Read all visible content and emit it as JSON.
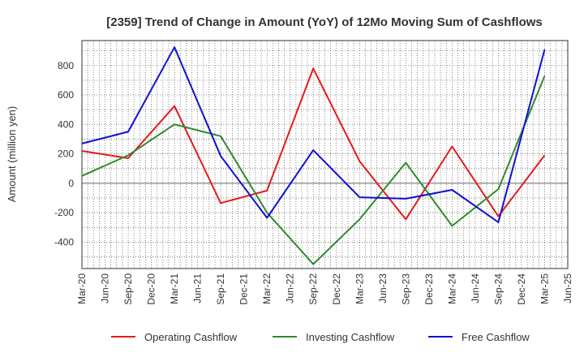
{
  "chart_data": {
    "type": "line",
    "title": "[2359]  Trend of Change in Amount (YoY) of 12Mo Moving Sum of Cashflows",
    "xlabel": "",
    "ylabel": "Amount (million yen)",
    "ylim": [
      -580,
      970
    ],
    "yticks": [
      800,
      600,
      400,
      200,
      0,
      -200,
      -400
    ],
    "grid": true,
    "legend_position": "bottom",
    "categories": [
      "Mar-20",
      "Jun-20",
      "Sep-20",
      "Dec-20",
      "Mar-21",
      "Jun-21",
      "Sep-21",
      "Dec-21",
      "Mar-22",
      "Jun-22",
      "Sep-22",
      "Dec-22",
      "Mar-23",
      "Jun-23",
      "Sep-23",
      "Dec-23",
      "Mar-24",
      "Jun-24",
      "Sep-24",
      "Dec-24",
      "Mar-25",
      "Jun-25"
    ],
    "series": [
      {
        "name": "Operating Cashflow",
        "color": "#e41a1c",
        "points": [
          [
            "Mar-20",
            220
          ],
          [
            "Sep-20",
            170
          ],
          [
            "Mar-21",
            525
          ],
          [
            "Sep-21",
            -135
          ],
          [
            "Mar-22",
            -50
          ],
          [
            "Sep-22",
            780
          ],
          [
            "Mar-23",
            150
          ],
          [
            "Sep-23",
            -245
          ],
          [
            "Mar-24",
            250
          ],
          [
            "Sep-24",
            -225
          ],
          [
            "Mar-25",
            190
          ]
        ]
      },
      {
        "name": "Investing Cashflow",
        "color": "#2e8b2e",
        "points": [
          [
            "Mar-20",
            50
          ],
          [
            "Sep-20",
            190
          ],
          [
            "Mar-21",
            400
          ],
          [
            "Sep-21",
            320
          ],
          [
            "Mar-22",
            -200
          ],
          [
            "Sep-22",
            -550
          ],
          [
            "Mar-23",
            -245
          ],
          [
            "Sep-23",
            140
          ],
          [
            "Mar-24",
            -290
          ],
          [
            "Sep-24",
            -40
          ],
          [
            "Mar-25",
            730
          ]
        ]
      },
      {
        "name": "Free Cashflow",
        "color": "#1010d0",
        "points": [
          [
            "Mar-20",
            270
          ],
          [
            "Sep-20",
            350
          ],
          [
            "Mar-21",
            925
          ],
          [
            "Sep-21",
            185
          ],
          [
            "Mar-22",
            -235
          ],
          [
            "Sep-22",
            225
          ],
          [
            "Mar-23",
            -95
          ],
          [
            "Sep-23",
            -105
          ],
          [
            "Mar-24",
            -45
          ],
          [
            "Sep-24",
            -265
          ],
          [
            "Mar-25",
            910
          ]
        ]
      }
    ]
  }
}
